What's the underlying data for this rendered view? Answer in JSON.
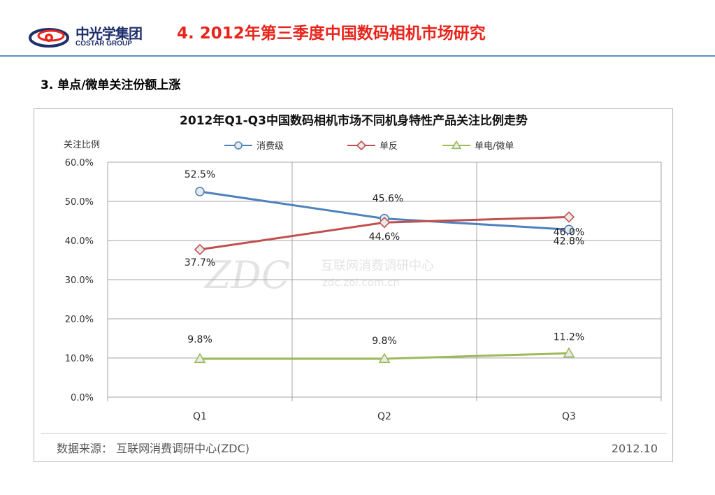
{
  "header": {
    "logo_cn": "中光学集团",
    "logo_en": "COSTAR GROUP",
    "title": "4. 2012年第三季度中国数码相机市场研究"
  },
  "subtitle": "3. 单点/微单关注份额上涨",
  "colors": {
    "title_red": "#e8251c",
    "rule_blue": "#5f8fc4",
    "logo_navy": "#1f2f6b",
    "series_consumer": "#4f81bd",
    "series_dslr": "#c0504d",
    "series_single": "#9bbb59"
  },
  "chart_data": {
    "type": "line",
    "title": "2012年Q1-Q3中国数码相机市场不同机身特性产品关注比例走势",
    "ylabel": "关注比例",
    "xlabel": "",
    "categories": [
      "Q1",
      "Q2",
      "Q3"
    ],
    "ylim": [
      0,
      60
    ],
    "yticks": [
      "0.0%",
      "10.0%",
      "20.0%",
      "30.0%",
      "40.0%",
      "50.0%",
      "60.0%"
    ],
    "grid": true,
    "legend_position": "top",
    "series": [
      {
        "name": "消费级",
        "values": [
          52.5,
          45.6,
          42.8
        ],
        "labels": [
          "52.5%",
          "45.6%",
          "42.8%"
        ],
        "marker": "circle",
        "color": "#4f81bd"
      },
      {
        "name": "单反",
        "values": [
          37.7,
          44.6,
          46.0
        ],
        "labels": [
          "37.7%",
          "44.6%",
          "46.0%"
        ],
        "marker": "diamond",
        "color": "#c0504d"
      },
      {
        "name": "单电/微单",
        "values": [
          9.8,
          9.8,
          11.2
        ],
        "labels": [
          "9.8%",
          "9.8%",
          "11.2%"
        ],
        "marker": "triangle",
        "color": "#9bbb59"
      }
    ],
    "watermark": {
      "logo": "ZDC",
      "cn": "互联网消费调研中心",
      "url": "zdc.zol.com.cn"
    },
    "source": "数据来源：  互联网消费调研中心(ZDC)",
    "date": "2012.10"
  }
}
